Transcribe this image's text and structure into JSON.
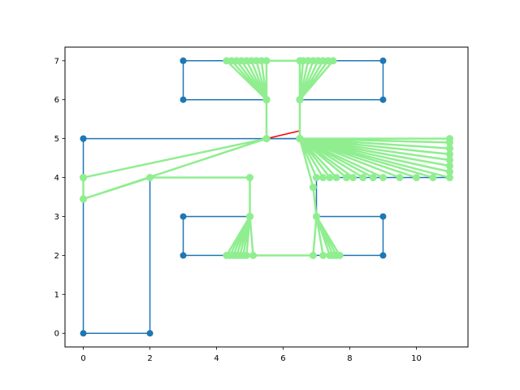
{
  "chart_data": {
    "type": "line",
    "title": "",
    "xlabel": "",
    "ylabel": "",
    "xlim": [
      -0.55,
      11.55
    ],
    "ylim": [
      -0.35,
      7.35
    ],
    "xticks": [
      0,
      2,
      4,
      6,
      8,
      10
    ],
    "yticks": [
      0,
      1,
      2,
      3,
      4,
      5,
      6,
      7
    ],
    "grid": false,
    "legend": "none",
    "colors": {
      "polygon": "#1f77b4",
      "path": "#90ee90",
      "segment": "#ff0000"
    },
    "series": [
      {
        "role": "polygon",
        "points": [
          [
            0,
            5
          ],
          [
            0,
            0
          ],
          [
            2,
            0
          ],
          [
            2,
            4
          ],
          [
            5,
            4
          ],
          [
            5,
            3
          ],
          [
            3,
            3
          ],
          [
            3,
            2
          ],
          [
            9,
            2
          ],
          [
            9,
            3
          ],
          [
            7,
            3
          ],
          [
            7,
            4
          ],
          [
            11,
            4
          ],
          [
            11,
            5
          ],
          [
            0,
            5
          ]
        ]
      },
      {
        "role": "polygon",
        "points": [
          [
            3,
            7
          ],
          [
            9,
            7
          ],
          [
            9,
            6
          ],
          [
            6.5,
            6
          ],
          [
            6.5,
            5
          ],
          [
            5.5,
            5
          ],
          [
            5.5,
            6
          ],
          [
            3,
            6
          ],
          [
            3,
            7
          ]
        ]
      },
      {
        "role": "segment",
        "points": [
          [
            5.5,
            5
          ],
          [
            6.5,
            5.2
          ]
        ]
      },
      {
        "role": "path",
        "points": [
          [
            5.5,
            5
          ],
          [
            0,
            4
          ],
          [
            0,
            3.45
          ],
          [
            5.5,
            5
          ],
          [
            5.5,
            6
          ],
          [
            4.3,
            7
          ],
          [
            4.45,
            7
          ],
          [
            5.5,
            6
          ],
          [
            4.6,
            7
          ],
          [
            4.75,
            7
          ],
          [
            5.5,
            6
          ],
          [
            4.9,
            7
          ],
          [
            5.05,
            7
          ],
          [
            5.5,
            6
          ],
          [
            5.2,
            7
          ],
          [
            5.35,
            7
          ],
          [
            5.5,
            6
          ],
          [
            5.5,
            7
          ],
          [
            6.5,
            7
          ],
          [
            6.5,
            6
          ],
          [
            6.6,
            7
          ],
          [
            6.75,
            7
          ],
          [
            6.5,
            6
          ],
          [
            6.9,
            7
          ],
          [
            7.05,
            7
          ],
          [
            6.5,
            6
          ],
          [
            7.2,
            7
          ],
          [
            7.35,
            7
          ],
          [
            6.5,
            6
          ],
          [
            7.5,
            7
          ],
          [
            6.5,
            6
          ],
          [
            6.5,
            5
          ],
          [
            11,
            5
          ],
          [
            11,
            4.9
          ],
          [
            6.5,
            5
          ],
          [
            11,
            4.75
          ],
          [
            6.5,
            5
          ],
          [
            11,
            4.6
          ],
          [
            6.5,
            5
          ],
          [
            11,
            4.45
          ],
          [
            6.5,
            5
          ],
          [
            11,
            4.3
          ],
          [
            6.5,
            5
          ],
          [
            11,
            4.15
          ],
          [
            6.5,
            5
          ],
          [
            11,
            4
          ],
          [
            6.5,
            5
          ],
          [
            10.5,
            4
          ],
          [
            6.5,
            5
          ],
          [
            10,
            4
          ],
          [
            6.5,
            5
          ],
          [
            9.5,
            4
          ],
          [
            6.5,
            5
          ],
          [
            9,
            4
          ],
          [
            6.5,
            5
          ],
          [
            8.7,
            4
          ],
          [
            6.5,
            5
          ],
          [
            8.4,
            4
          ],
          [
            6.5,
            5
          ],
          [
            8.1,
            4
          ],
          [
            6.5,
            5
          ],
          [
            7.9,
            4
          ],
          [
            6.5,
            5
          ],
          [
            7.6,
            4
          ],
          [
            6.5,
            5
          ],
          [
            7.4,
            4
          ],
          [
            6.5,
            5
          ],
          [
            7.2,
            4
          ],
          [
            6.5,
            5
          ],
          [
            7,
            4
          ],
          [
            6.5,
            5
          ],
          [
            6.9,
            3.75
          ],
          [
            7,
            3
          ],
          [
            7.6,
            2
          ],
          [
            7.4,
            2
          ],
          [
            7,
            3
          ],
          [
            7.7,
            2
          ],
          [
            7.2,
            2
          ],
          [
            7,
            3
          ],
          [
            7.5,
            2
          ],
          [
            7,
            3
          ],
          [
            6.9,
            2
          ],
          [
            5.1,
            2
          ],
          [
            5,
            3
          ],
          [
            4.3,
            2
          ],
          [
            4.4,
            2
          ],
          [
            5,
            3
          ],
          [
            4.5,
            2
          ],
          [
            4.6,
            2
          ],
          [
            5,
            3
          ],
          [
            4.7,
            2
          ],
          [
            4.8,
            2
          ],
          [
            5,
            3
          ],
          [
            4.9,
            2
          ],
          [
            5,
            3
          ],
          [
            5,
            4
          ],
          [
            2,
            4
          ],
          [
            0,
            3.45
          ],
          [
            0,
            4
          ],
          [
            0,
            3.45
          ],
          [
            0,
            4
          ],
          [
            5.5,
            5
          ]
        ]
      }
    ]
  }
}
